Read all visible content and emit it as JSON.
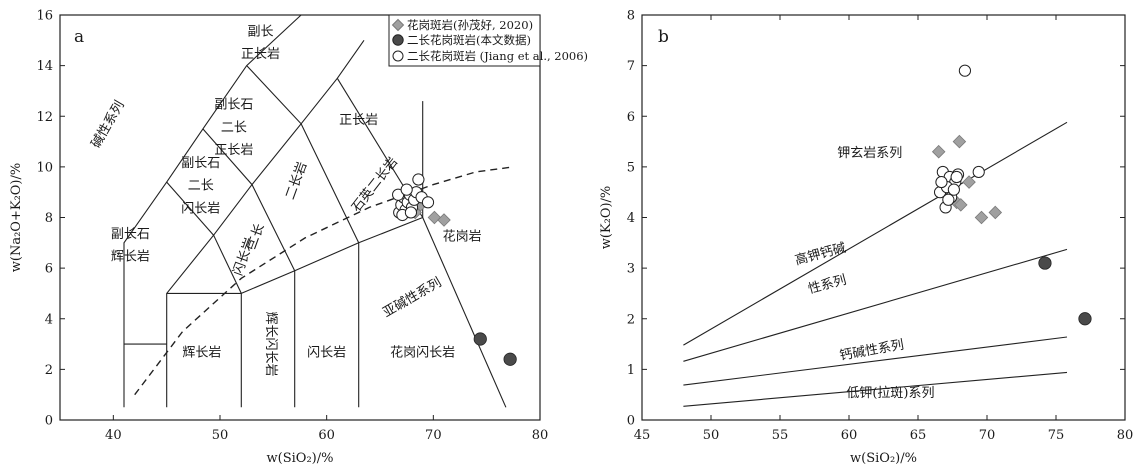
{
  "chart_data": [
    {
      "type": "scatter",
      "panel_label": "a",
      "xlabel": "w(SiO₂)/%",
      "ylabel": "w(Na₂O+K₂O)/%",
      "xlim": [
        35,
        80
      ],
      "ylim": [
        0,
        16
      ],
      "x_ticks": [
        40,
        50,
        60,
        70,
        80
      ],
      "y_ticks": [
        0,
        2,
        4,
        6,
        8,
        10,
        12,
        14,
        16
      ],
      "legend": {
        "placement": "top-right",
        "entries": [
          {
            "marker": "diamond",
            "color": "#a0a0a0",
            "label": "花岗斑岩(孙茂好, 2020)"
          },
          {
            "marker": "circle-filled",
            "color": "#4a4a4a",
            "label": "二长花岗斑岩(本文数据)"
          },
          {
            "marker": "circle-open",
            "color": "#ffffff",
            "label": "二长花岗斑岩 (Jiang et al., 2006)"
          }
        ]
      },
      "series": [
        {
          "name": "花岗斑岩(孙茂好, 2020)",
          "marker": "diamond",
          "points": [
            [
              67.5,
              8.4
            ],
            [
              67.9,
              8.3
            ],
            [
              68.3,
              8.2
            ],
            [
              68.8,
              8.5
            ],
            [
              70.1,
              8.0
            ],
            [
              71.0,
              7.9
            ]
          ]
        },
        {
          "name": "二长花岗斑岩(本文数据)",
          "marker": "circle-filled",
          "points": [
            [
              74.4,
              3.2
            ],
            [
              77.2,
              2.4
            ]
          ]
        },
        {
          "name": "二长花岗斑岩 (Jiang et al., 2006)",
          "marker": "circle-open",
          "points": [
            [
              66.8,
              8.2
            ],
            [
              67.0,
              8.5
            ],
            [
              67.2,
              8.8
            ],
            [
              67.4,
              8.3
            ],
            [
              67.6,
              8.6
            ],
            [
              67.8,
              8.9
            ],
            [
              68.0,
              8.4
            ],
            [
              68.2,
              8.7
            ],
            [
              68.4,
              9.0
            ],
            [
              68.6,
              9.5
            ],
            [
              66.7,
              8.9
            ],
            [
              67.1,
              8.1
            ],
            [
              67.5,
              9.1
            ],
            [
              68.9,
              8.8
            ],
            [
              69.5,
              8.6
            ],
            [
              67.9,
              8.2
            ]
          ]
        }
      ],
      "field_labels": [
        {
          "text": "碱性系列",
          "x": 39.8,
          "y": 11.6,
          "angle": -60
        },
        {
          "text": "副长",
          "x": 53.8,
          "y": 15.2
        },
        {
          "text": "正长岩",
          "x": 53.8,
          "y": 14.3
        },
        {
          "text": "副长石",
          "x": 51.3,
          "y": 12.3
        },
        {
          "text": "二长",
          "x": 51.3,
          "y": 11.4
        },
        {
          "text": "正长岩",
          "x": 51.3,
          "y": 10.5
        },
        {
          "text": "正长岩",
          "x": 63.0,
          "y": 11.7
        },
        {
          "text": "副长石",
          "x": 48.2,
          "y": 10.0
        },
        {
          "text": "二长",
          "x": 48.2,
          "y": 9.1
        },
        {
          "text": "闪长岩",
          "x": 48.2,
          "y": 8.2
        },
        {
          "text": "二长岩",
          "x": 57.5,
          "y": 9.4,
          "angle": -70
        },
        {
          "text": "石英二长岩",
          "x": 64.8,
          "y": 9.2,
          "angle": -52
        },
        {
          "text": "副长石",
          "x": 41.6,
          "y": 7.2
        },
        {
          "text": "辉长岩",
          "x": 41.6,
          "y": 6.3
        },
        {
          "text": "二长",
          "x": 53.7,
          "y": 7.2,
          "angle": -70
        },
        {
          "text": "闪长岩",
          "x": 52.6,
          "y": 6.4,
          "angle": -70
        },
        {
          "text": "花岗岩",
          "x": 72.7,
          "y": 7.1
        },
        {
          "text": "亚碱性系列",
          "x": 68.2,
          "y": 4.7,
          "angle": -30
        },
        {
          "text": "辉长岩",
          "x": 48.3,
          "y": 2.5
        },
        {
          "text": "辉长闪长岩",
          "x": 54.4,
          "y": 3.0,
          "angle": 90
        },
        {
          "text": "闪长岩",
          "x": 60.0,
          "y": 2.5
        },
        {
          "text": "花岗闪长岩",
          "x": 69.0,
          "y": 2.5
        }
      ]
    },
    {
      "type": "scatter",
      "panel_label": "b",
      "xlabel": "w(SiO₂)/%",
      "ylabel": "w(K₂O)/%",
      "xlim": [
        45,
        80
      ],
      "ylim": [
        0,
        8
      ],
      "x_ticks": [
        45,
        50,
        55,
        60,
        65,
        70,
        75,
        80
      ],
      "y_ticks": [
        0,
        1,
        2,
        3,
        4,
        5,
        6,
        7,
        8
      ],
      "series": [
        {
          "name": "花岗斑岩(孙茂好, 2020)",
          "marker": "diamond",
          "points": [
            [
              66.5,
              5.3
            ],
            [
              68.0,
              5.5
            ],
            [
              67.8,
              4.3
            ],
            [
              68.7,
              4.7
            ],
            [
              69.6,
              4.0
            ],
            [
              70.6,
              4.1
            ],
            [
              68.1,
              4.25
            ]
          ]
        },
        {
          "name": "二长花岗斑岩(本文数据)",
          "marker": "circle-filled",
          "points": [
            [
              74.2,
              3.1
            ],
            [
              77.1,
              2.0
            ]
          ]
        },
        {
          "name": "二长花岗斑岩 (Jiang et al., 2006)",
          "marker": "circle-open",
          "points": [
            [
              68.4,
              6.9
            ],
            [
              66.8,
              4.9
            ],
            [
              67.3,
              4.8
            ],
            [
              67.7,
              4.7
            ],
            [
              67.9,
              4.85
            ],
            [
              66.6,
              4.5
            ],
            [
              67.1,
              4.6
            ],
            [
              67.4,
              4.4
            ],
            [
              67.0,
              4.2
            ],
            [
              66.7,
              4.7
            ],
            [
              67.6,
              4.55
            ],
            [
              69.4,
              4.9
            ],
            [
              67.2,
              4.35
            ],
            [
              67.8,
              4.8
            ]
          ]
        }
      ],
      "field_labels": [
        {
          "text": "钾玄岩系列",
          "x": 61.5,
          "y": 5.2
        },
        {
          "text": "高钾钙碱",
          "x": 58.0,
          "y": 3.2,
          "angle": -15
        },
        {
          "text": "性系列",
          "x": 58.5,
          "y": 2.6,
          "angle": -15
        },
        {
          "text": "钙碱性系列",
          "x": 61.7,
          "y": 1.3,
          "angle": -10
        },
        {
          "text": "低钾(拉斑)系列",
          "x": 63.0,
          "y": 0.45
        }
      ]
    }
  ]
}
